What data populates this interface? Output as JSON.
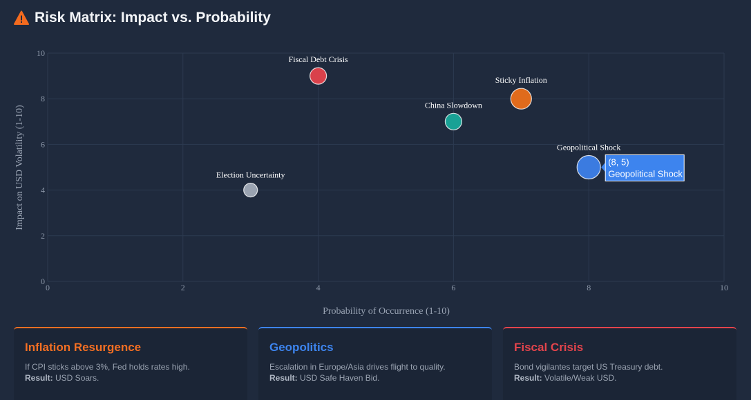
{
  "header": {
    "title": "Risk Matrix: Impact vs. Probability",
    "icon": "warning-triangle-icon",
    "icon_color": "#f46b1f"
  },
  "chart_data": {
    "type": "scatter",
    "title": "Risk Matrix: Impact vs. Probability",
    "xlabel": "Probability of Occurrence (1-10)",
    "ylabel": "Impact on USD Volatility (1-10)",
    "xlim": [
      0,
      10
    ],
    "ylim": [
      0,
      10
    ],
    "xticks": [
      0,
      2,
      4,
      6,
      8,
      10
    ],
    "yticks": [
      0,
      2,
      4,
      6,
      8,
      10
    ],
    "grid": true,
    "points": [
      {
        "label": "Fiscal Debt Crisis",
        "x": 4,
        "y": 9,
        "color": "#d9414b"
      },
      {
        "label": "Sticky Inflation",
        "x": 7,
        "y": 8,
        "color": "#e06b1c"
      },
      {
        "label": "China Slowdown",
        "x": 6,
        "y": 7,
        "color": "#19a195"
      },
      {
        "label": "Geopolitical Shock",
        "x": 8,
        "y": 5,
        "color": "#3b7be0"
      },
      {
        "label": "Election Uncertainty",
        "x": 3,
        "y": 4,
        "color": "#9aa3b1"
      }
    ],
    "tooltip": {
      "coords": "(8, 5)",
      "label": "Geopolitical Shock",
      "color": "#3d84ee"
    }
  },
  "cards": [
    {
      "title": "Inflation Resurgence",
      "color": "#f46f23",
      "description": "If CPI sticks above 3%, Fed holds rates high.",
      "result_label": "Result:",
      "result": "USD Soars."
    },
    {
      "title": "Geopolitics",
      "color": "#3d84ee",
      "description": "Escalation in Europe/Asia drives flight to quality.",
      "result_label": "Result:",
      "result": "USD Safe Haven Bid."
    },
    {
      "title": "Fiscal Crisis",
      "color": "#e4444c",
      "description": "Bond vigilantes target US Treasury debt.",
      "result_label": "Result:",
      "result": "Volatile/Weak USD."
    }
  ]
}
